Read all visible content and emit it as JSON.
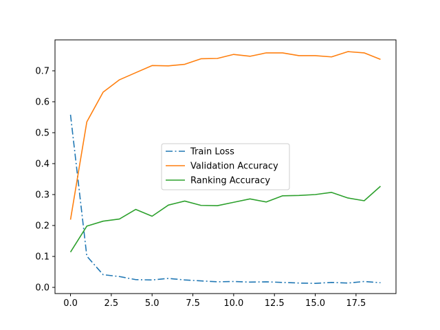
{
  "chart_data": {
    "type": "line",
    "title": "",
    "xlabel": "",
    "ylabel": "",
    "xlim": [
      -0.95,
      19.95
    ],
    "ylim": [
      -0.02,
      0.8
    ],
    "grid": false,
    "legend_position": "center",
    "x": [
      0,
      1,
      2,
      3,
      4,
      5,
      6,
      7,
      8,
      9,
      10,
      11,
      12,
      13,
      14,
      15,
      16,
      17,
      18,
      19
    ],
    "xticks": [
      0.0,
      2.5,
      5.0,
      7.5,
      10.0,
      12.5,
      15.0,
      17.5
    ],
    "xtick_labels": [
      "0.0",
      "2.5",
      "5.0",
      "7.5",
      "10.0",
      "12.5",
      "15.0",
      "17.5"
    ],
    "yticks": [
      0.0,
      0.1,
      0.2,
      0.3,
      0.4,
      0.5,
      0.6,
      0.7
    ],
    "ytick_labels": [
      "0.0",
      "0.1",
      "0.2",
      "0.3",
      "0.4",
      "0.5",
      "0.6",
      "0.7"
    ],
    "series": [
      {
        "name": "Train Loss",
        "color": "#1f77b4",
        "style": "dashdot",
        "values": [
          0.558,
          0.101,
          0.041,
          0.035,
          0.025,
          0.024,
          0.029,
          0.024,
          0.021,
          0.018,
          0.019,
          0.017,
          0.018,
          0.016,
          0.014,
          0.013,
          0.016,
          0.014,
          0.019,
          0.015
        ]
      },
      {
        "name": "Validation Accuracy",
        "color": "#ff7f0e",
        "style": "solid",
        "values": [
          0.219,
          0.535,
          0.631,
          0.671,
          0.694,
          0.717,
          0.716,
          0.721,
          0.739,
          0.74,
          0.753,
          0.747,
          0.758,
          0.758,
          0.749,
          0.749,
          0.745,
          0.762,
          0.758,
          0.737
        ]
      },
      {
        "name": "Ranking Accuracy",
        "color": "#2ca02c",
        "style": "solid",
        "values": [
          0.114,
          0.198,
          0.214,
          0.221,
          0.252,
          0.23,
          0.266,
          0.279,
          0.265,
          0.264,
          0.275,
          0.286,
          0.276,
          0.296,
          0.297,
          0.3,
          0.307,
          0.289,
          0.28,
          0.327
        ]
      }
    ]
  }
}
